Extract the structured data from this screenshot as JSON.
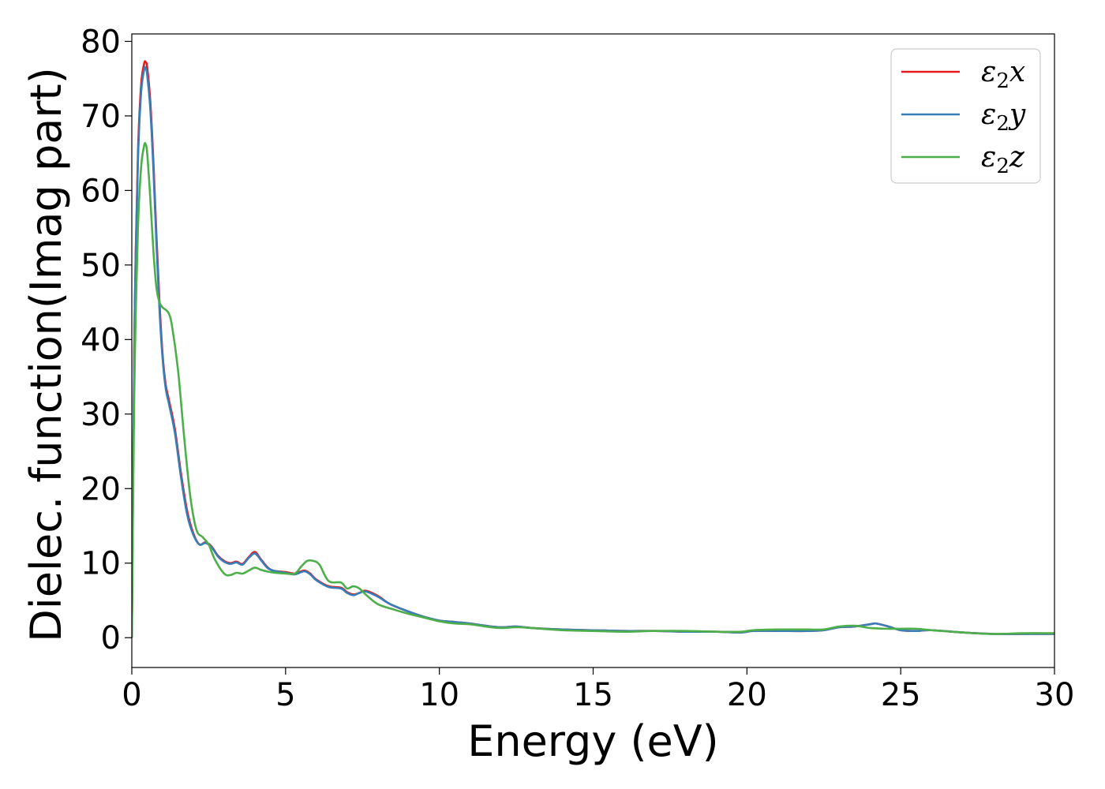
{
  "chart_data": {
    "type": "line",
    "xlabel": "Energy (eV)",
    "ylabel": "Dielec. function(Imag part)",
    "xlim": [
      0,
      30
    ],
    "ylim": [
      -4,
      81
    ],
    "xticks": [
      0,
      5,
      10,
      15,
      20,
      25,
      30
    ],
    "xtick_labels": [
      "0",
      "5",
      "10",
      "15",
      "20",
      "25",
      "30"
    ],
    "yticks": [
      0,
      10,
      20,
      30,
      40,
      50,
      60,
      70,
      80
    ],
    "ytick_labels": [
      "0",
      "10",
      "20",
      "30",
      "40",
      "50",
      "60",
      "70",
      "80"
    ],
    "grid": false,
    "legend_position": "top-right",
    "series": [
      {
        "name": "ε₂x",
        "legend_base": "ε",
        "legend_sub": "2",
        "legend_suffix": "x",
        "color": "#e41a1c",
        "points": [
          [
            0,
            0
          ],
          [
            0.05,
            25
          ],
          [
            0.1,
            45
          ],
          [
            0.2,
            65
          ],
          [
            0.3,
            74
          ],
          [
            0.4,
            77
          ],
          [
            0.45,
            77.2
          ],
          [
            0.5,
            76.5
          ],
          [
            0.6,
            72
          ],
          [
            0.7,
            64
          ],
          [
            0.8,
            54
          ],
          [
            0.9,
            45
          ],
          [
            1.0,
            38
          ],
          [
            1.1,
            34
          ],
          [
            1.2,
            32
          ],
          [
            1.4,
            28
          ],
          [
            1.6,
            22
          ],
          [
            1.8,
            17
          ],
          [
            2.0,
            14
          ],
          [
            2.2,
            12.5
          ],
          [
            2.4,
            12.8
          ],
          [
            2.6,
            12.2
          ],
          [
            2.8,
            11
          ],
          [
            3.0,
            10.3
          ],
          [
            3.2,
            10
          ],
          [
            3.4,
            10.2
          ],
          [
            3.6,
            9.9
          ],
          [
            3.8,
            10.8
          ],
          [
            4.0,
            11.5
          ],
          [
            4.2,
            10.5
          ],
          [
            4.4,
            9.5
          ],
          [
            4.6,
            9.0
          ],
          [
            5.0,
            8.8
          ],
          [
            5.3,
            8.6
          ],
          [
            5.6,
            9.0
          ],
          [
            5.8,
            8.6
          ],
          [
            6.0,
            7.8
          ],
          [
            6.4,
            6.9
          ],
          [
            6.8,
            6.7
          ],
          [
            7.0,
            6.1
          ],
          [
            7.2,
            5.8
          ],
          [
            7.4,
            6.0
          ],
          [
            7.6,
            6.3
          ],
          [
            8.0,
            5.6
          ],
          [
            8.4,
            4.5
          ],
          [
            9.0,
            3.5
          ],
          [
            9.5,
            2.8
          ],
          [
            10,
            2.3
          ],
          [
            10.5,
            2.1
          ],
          [
            11,
            1.9
          ],
          [
            11.5,
            1.6
          ],
          [
            12,
            1.4
          ],
          [
            12.5,
            1.5
          ],
          [
            13,
            1.3
          ],
          [
            14,
            1.1
          ],
          [
            15,
            1.0
          ],
          [
            16,
            0.9
          ],
          [
            17,
            0.9
          ],
          [
            18,
            0.8
          ],
          [
            19,
            0.8
          ],
          [
            19.8,
            0.7
          ],
          [
            20.2,
            0.9
          ],
          [
            21,
            0.9
          ],
          [
            22,
            0.9
          ],
          [
            22.5,
            1.0
          ],
          [
            23,
            1.4
          ],
          [
            23.5,
            1.5
          ],
          [
            24,
            1.8
          ],
          [
            24.2,
            1.9
          ],
          [
            24.6,
            1.5
          ],
          [
            25,
            1.0
          ],
          [
            25.5,
            0.9
          ],
          [
            26,
            1.0
          ],
          [
            27,
            0.7
          ],
          [
            28,
            0.5
          ],
          [
            29,
            0.5
          ],
          [
            30,
            0.5
          ]
        ]
      },
      {
        "name": "ε₂y",
        "legend_base": "ε",
        "legend_sub": "2",
        "legend_suffix": "y",
        "color": "#377eb8",
        "points": [
          [
            0,
            0
          ],
          [
            0.05,
            25
          ],
          [
            0.1,
            45
          ],
          [
            0.2,
            64
          ],
          [
            0.3,
            73
          ],
          [
            0.4,
            76.2
          ],
          [
            0.45,
            76.4
          ],
          [
            0.5,
            75.5
          ],
          [
            0.6,
            71
          ],
          [
            0.7,
            63
          ],
          [
            0.8,
            53
          ],
          [
            0.9,
            44
          ],
          [
            1.0,
            37.5
          ],
          [
            1.1,
            33.5
          ],
          [
            1.2,
            31.5
          ],
          [
            1.4,
            27.5
          ],
          [
            1.6,
            21.5
          ],
          [
            1.8,
            16.5
          ],
          [
            2.0,
            13.8
          ],
          [
            2.2,
            12.5
          ],
          [
            2.4,
            12.7
          ],
          [
            2.6,
            12.1
          ],
          [
            2.8,
            10.9
          ],
          [
            3.0,
            10.2
          ],
          [
            3.2,
            9.9
          ],
          [
            3.4,
            10.1
          ],
          [
            3.6,
            9.8
          ],
          [
            3.8,
            10.7
          ],
          [
            4.0,
            11.3
          ],
          [
            4.2,
            10.4
          ],
          [
            4.4,
            9.4
          ],
          [
            4.6,
            9.0
          ],
          [
            5.0,
            8.7
          ],
          [
            5.3,
            8.5
          ],
          [
            5.6,
            8.9
          ],
          [
            5.8,
            8.5
          ],
          [
            6.0,
            7.7
          ],
          [
            6.4,
            6.8
          ],
          [
            6.8,
            6.6
          ],
          [
            7.0,
            6.0
          ],
          [
            7.2,
            5.7
          ],
          [
            7.4,
            6.0
          ],
          [
            7.6,
            6.2
          ],
          [
            8.0,
            5.5
          ],
          [
            8.4,
            4.5
          ],
          [
            9.0,
            3.5
          ],
          [
            9.5,
            2.8
          ],
          [
            10,
            2.3
          ],
          [
            10.5,
            2.1
          ],
          [
            11,
            1.9
          ],
          [
            11.5,
            1.6
          ],
          [
            12,
            1.4
          ],
          [
            12.5,
            1.5
          ],
          [
            13,
            1.3
          ],
          [
            14,
            1.1
          ],
          [
            15,
            1.0
          ],
          [
            16,
            0.9
          ],
          [
            17,
            0.9
          ],
          [
            18,
            0.8
          ],
          [
            19,
            0.8
          ],
          [
            19.8,
            0.7
          ],
          [
            20.2,
            0.9
          ],
          [
            21,
            0.9
          ],
          [
            22,
            0.9
          ],
          [
            22.5,
            1.0
          ],
          [
            23,
            1.4
          ],
          [
            23.5,
            1.5
          ],
          [
            24,
            1.8
          ],
          [
            24.2,
            1.9
          ],
          [
            24.6,
            1.5
          ],
          [
            25,
            1.0
          ],
          [
            25.5,
            0.9
          ],
          [
            26,
            1.0
          ],
          [
            27,
            0.7
          ],
          [
            28,
            0.5
          ],
          [
            29,
            0.5
          ],
          [
            30,
            0.5
          ]
        ]
      },
      {
        "name": "ε₂z",
        "legend_base": "ε",
        "legend_sub": "2",
        "legend_suffix": "z",
        "color": "#4daf4a",
        "points": [
          [
            0,
            0
          ],
          [
            0.05,
            22
          ],
          [
            0.1,
            38
          ],
          [
            0.2,
            55
          ],
          [
            0.3,
            63
          ],
          [
            0.4,
            66
          ],
          [
            0.45,
            66.2
          ],
          [
            0.5,
            65
          ],
          [
            0.6,
            59
          ],
          [
            0.7,
            52
          ],
          [
            0.8,
            47
          ],
          [
            0.9,
            45
          ],
          [
            1.0,
            44.3
          ],
          [
            1.1,
            44
          ],
          [
            1.2,
            43.5
          ],
          [
            1.3,
            42
          ],
          [
            1.5,
            36
          ],
          [
            1.7,
            27
          ],
          [
            1.9,
            19
          ],
          [
            2.1,
            14.5
          ],
          [
            2.3,
            13.5
          ],
          [
            2.5,
            12.5
          ],
          [
            2.7,
            10.5
          ],
          [
            3.0,
            8.6
          ],
          [
            3.2,
            8.4
          ],
          [
            3.4,
            8.7
          ],
          [
            3.6,
            8.6
          ],
          [
            3.8,
            9.0
          ],
          [
            4.0,
            9.4
          ],
          [
            4.2,
            9.1
          ],
          [
            4.5,
            8.8
          ],
          [
            5.0,
            8.6
          ],
          [
            5.3,
            8.6
          ],
          [
            5.5,
            9.5
          ],
          [
            5.7,
            10.3
          ],
          [
            5.9,
            10.3
          ],
          [
            6.1,
            9.8
          ],
          [
            6.4,
            7.6
          ],
          [
            6.8,
            7.4
          ],
          [
            7.0,
            6.6
          ],
          [
            7.2,
            6.9
          ],
          [
            7.4,
            6.6
          ],
          [
            7.6,
            5.8
          ],
          [
            8.0,
            4.5
          ],
          [
            8.5,
            3.8
          ],
          [
            9.0,
            3.2
          ],
          [
            9.5,
            2.7
          ],
          [
            10,
            2.2
          ],
          [
            10.5,
            1.9
          ],
          [
            11,
            1.8
          ],
          [
            11.5,
            1.5
          ],
          [
            12,
            1.3
          ],
          [
            12.5,
            1.4
          ],
          [
            13,
            1.3
          ],
          [
            14,
            1.0
          ],
          [
            15,
            0.9
          ],
          [
            16,
            0.8
          ],
          [
            17,
            0.9
          ],
          [
            18,
            0.9
          ],
          [
            19,
            0.8
          ],
          [
            19.8,
            0.8
          ],
          [
            20.2,
            1.0
          ],
          [
            21,
            1.1
          ],
          [
            22,
            1.1
          ],
          [
            22.5,
            1.1
          ],
          [
            23,
            1.5
          ],
          [
            23.5,
            1.6
          ],
          [
            24,
            1.3
          ],
          [
            24.5,
            1.2
          ],
          [
            25,
            1.2
          ],
          [
            25.5,
            1.2
          ],
          [
            26,
            1.0
          ],
          [
            27,
            0.7
          ],
          [
            28,
            0.5
          ],
          [
            29,
            0.6
          ],
          [
            30,
            0.6
          ]
        ]
      }
    ]
  }
}
